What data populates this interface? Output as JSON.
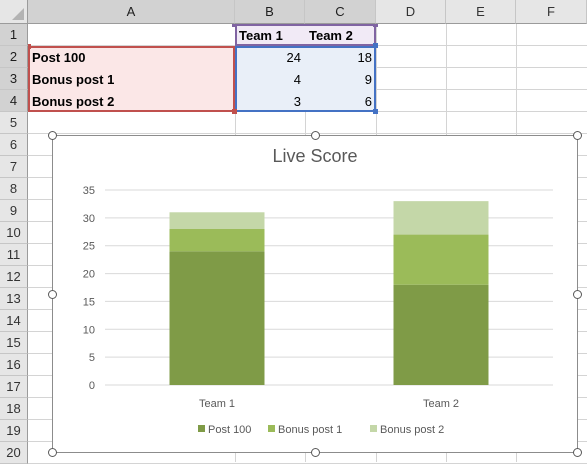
{
  "columns": [
    "A",
    "B",
    "C",
    "D",
    "E",
    "F"
  ],
  "rows": [
    "1",
    "2",
    "3",
    "4",
    "5",
    "6",
    "7",
    "8",
    "9",
    "10",
    "11",
    "12",
    "13",
    "14",
    "15",
    "16",
    "17",
    "18",
    "19",
    "20"
  ],
  "cells": {
    "header": [
      "Team 1",
      "Team 2"
    ],
    "rows": [
      {
        "label": "Post 100",
        "team1": "24",
        "team2": "18"
      },
      {
        "label": "Bonus post 1",
        "team1": "4",
        "team2": "9"
      },
      {
        "label": "Bonus post 2",
        "team1": "3",
        "team2": "6"
      }
    ]
  },
  "colors": {
    "post100": "#7f9b47",
    "bonus1": "#9bbb59",
    "bonus2": "#c4d7a8",
    "range_labels": "#c0504d",
    "range_headers": "#8064a2",
    "range_values": "#4472c4"
  },
  "chart_data": {
    "type": "bar",
    "stacked": true,
    "title": "Live Score",
    "categories": [
      "Team 1",
      "Team 2"
    ],
    "series": [
      {
        "name": "Post 100",
        "values": [
          24,
          18
        ]
      },
      {
        "name": "Bonus post 1",
        "values": [
          4,
          9
        ]
      },
      {
        "name": "Bonus post 2",
        "values": [
          3,
          6
        ]
      }
    ],
    "yticks": [
      "0",
      "5",
      "10",
      "15",
      "20",
      "25",
      "30",
      "35"
    ],
    "ylim": [
      0,
      35
    ],
    "grid": true,
    "legend": "bottom",
    "xlabel": "",
    "ylabel": ""
  }
}
